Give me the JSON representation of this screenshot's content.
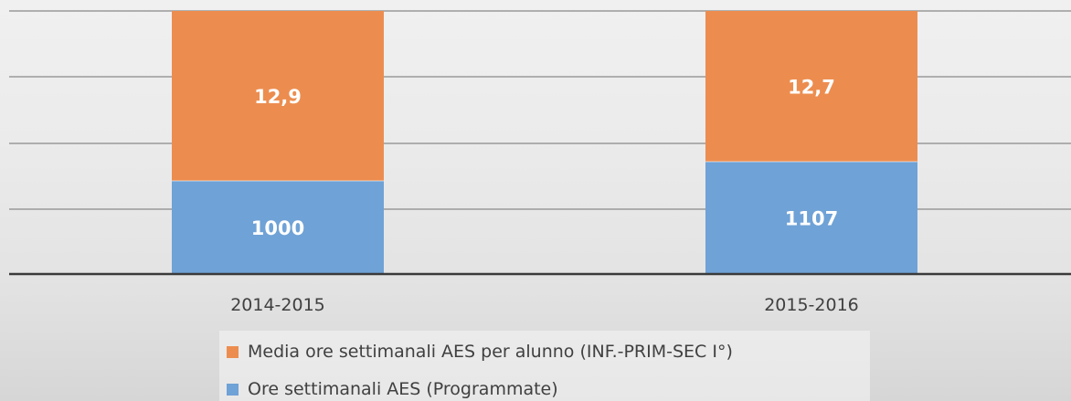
{
  "chart_data": {
    "type": "bar",
    "stacked": true,
    "categories": [
      "2014-2015",
      "2015-2016"
    ],
    "series": [
      {
        "name": "Ore settimanali AES (Programmate)",
        "color": "#6fa2d6",
        "values": [
          1000,
          1107
        ],
        "labels": [
          "1000",
          "1107"
        ]
      },
      {
        "name": "Media ore settimanali AES per alunno (INF.-PRIM-SEC I°)",
        "color": "#ec8d4f",
        "values": [
          12.9,
          12.7
        ],
        "labels": [
          "12,9",
          "12,7"
        ]
      }
    ],
    "grid": true,
    "legend_position": "bottom",
    "legend_order": [
      "Media ore settimanali AES per alunno (INF.-PRIM-SEC I°)",
      "Ore settimanali AES (Programmate)"
    ]
  }
}
